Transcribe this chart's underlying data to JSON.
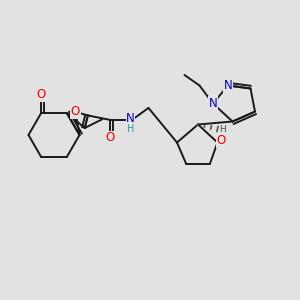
{
  "bg_color": "#e2e2e2",
  "bond_color": "#1a1a1a",
  "bond_width": 1.4,
  "atom_colors": {
    "O": "#ee0000",
    "N": "#0000cc",
    "H": "#2ca0a0",
    "C": "#1a1a1a"
  },
  "font_size_atom": 8.5,
  "font_size_small": 7.0
}
